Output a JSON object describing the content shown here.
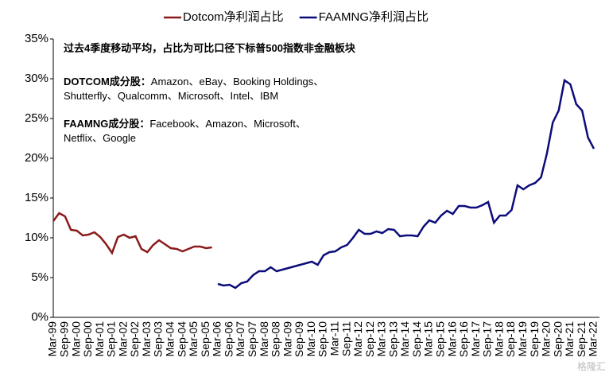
{
  "chart_data": {
    "type": "line",
    "categories": [
      "Mar-99",
      null,
      "Sep-99",
      null,
      "Mar-00",
      null,
      "Sep-00",
      null,
      "Mar-01",
      null,
      "Sep-01",
      null,
      "Mar-02",
      null,
      "Sep-02",
      null,
      "Mar-03",
      null,
      "Sep-03",
      null,
      "Mar-04",
      null,
      "Sep-04",
      null,
      "Mar-05",
      null,
      "Sep-05",
      null,
      "Mar-06",
      null,
      "Sep-06",
      null,
      "Mar-07",
      null,
      "Sep-07",
      null,
      "Mar-08",
      null,
      "Sep-08",
      null,
      "Mar-09",
      null,
      "Sep-09",
      null,
      "Mar-10",
      null,
      "Sep-10",
      null,
      "Mar-11",
      null,
      "Sep-11",
      null,
      "Mar-12",
      null,
      "Sep-12",
      null,
      "Mar-13",
      null,
      "Sep-13",
      null,
      "Mar-14",
      null,
      "Sep-14",
      null,
      "Mar-15",
      null,
      "Sep-15",
      null,
      "Mar-16",
      null,
      "Sep-16",
      null,
      "Mar-17",
      null,
      "Sep-17",
      null,
      "Mar-18",
      null,
      "Sep-18",
      null,
      "Mar-19",
      null,
      "Sep-19",
      null,
      "Mar-20",
      null,
      "Sep-20",
      null,
      "Mar-21",
      null,
      "Sep-21",
      null,
      "Mar-22"
    ],
    "series": [
      {
        "name": "Dotcom净利润占比",
        "color": "#8b1a1a",
        "values": [
          12.1,
          13.1,
          12.7,
          11.0,
          10.9,
          10.3,
          10.4,
          10.7,
          10.1,
          9.2,
          8.1,
          10.1,
          10.4,
          10.0,
          10.2,
          8.6,
          8.2,
          9.1,
          9.7,
          9.2,
          8.7,
          8.6,
          8.3,
          8.6,
          8.9,
          8.9,
          8.7,
          8.8,
          null,
          null,
          null,
          null,
          null,
          null,
          null,
          null,
          null,
          null,
          null,
          null,
          null,
          null,
          null,
          null,
          null,
          null,
          null,
          null,
          null,
          null,
          null,
          null,
          null,
          null,
          null,
          null,
          null,
          null,
          null,
          null,
          null,
          null,
          null,
          null,
          null,
          null,
          null,
          null,
          null,
          null,
          null,
          null,
          null,
          null,
          null,
          null,
          null,
          null,
          null,
          null,
          null,
          null,
          null,
          null,
          null,
          null,
          null,
          null,
          null,
          null,
          null,
          null,
          null
        ]
      },
      {
        "name": "FAAMNG净利润占比",
        "color": "#0c0c7a",
        "values": [
          null,
          null,
          null,
          null,
          null,
          null,
          null,
          null,
          null,
          null,
          null,
          null,
          null,
          null,
          null,
          null,
          null,
          null,
          null,
          null,
          null,
          null,
          null,
          null,
          null,
          null,
          null,
          null,
          4.2,
          4.0,
          4.1,
          3.7,
          4.3,
          4.5,
          5.3,
          5.8,
          5.8,
          6.3,
          5.8,
          6.0,
          6.2,
          6.4,
          6.6,
          6.8,
          7.0,
          6.6,
          7.8,
          8.2,
          8.3,
          8.8,
          9.1,
          10.0,
          11.0,
          10.5,
          10.5,
          10.8,
          10.6,
          11.1,
          11.0,
          10.2,
          10.3,
          10.3,
          10.2,
          11.4,
          12.2,
          11.9,
          12.8,
          13.4,
          13.0,
          14.0,
          14.0,
          13.8,
          13.8,
          14.1,
          14.5,
          11.9,
          12.8,
          12.8,
          13.5,
          16.6,
          16.1,
          16.6,
          16.9,
          17.6,
          20.6,
          24.5,
          26.0,
          29.8,
          29.3,
          26.8,
          26.0,
          22.6,
          21.2
        ]
      }
    ],
    "ylim": [
      0,
      35
    ],
    "yticks": [
      {
        "value": 0,
        "label": "0%"
      },
      {
        "value": 5,
        "label": "5%"
      },
      {
        "value": 10,
        "label": "10%"
      },
      {
        "value": 15,
        "label": "15%"
      },
      {
        "value": 20,
        "label": "20%"
      },
      {
        "value": 25,
        "label": "25%"
      },
      {
        "value": 30,
        "label": "30%"
      },
      {
        "value": 35,
        "label": "35%"
      }
    ],
    "grid": false,
    "legend": "top",
    "annotations": [
      {
        "lines": [
          {
            "bold": "过去4季度移动平均，占比为可比口径下标普500指数非金融板块"
          }
        ]
      },
      {
        "lines": [
          {
            "bold": "DOTCOM成分股：",
            "text": "Amazon、eBay、Booking Holdings、"
          },
          {
            "text": "Shutterfly、Qualcomm、Microsoft、Intel、IBM"
          }
        ]
      },
      {
        "lines": [
          {
            "bold": "FAAMNG成分股：",
            "text": "Facebook、Amazon、Microsoft、"
          },
          {
            "text": "Netflix、Google"
          }
        ]
      }
    ],
    "watermark": "格隆汇"
  }
}
